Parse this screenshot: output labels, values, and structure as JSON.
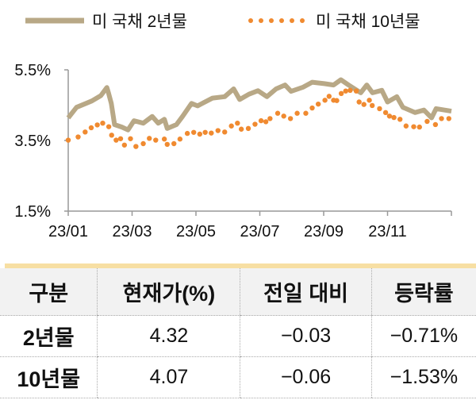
{
  "colors": {
    "y2": "#b8a886",
    "y10": "#f08a30"
  },
  "chart_data": {
    "type": "line",
    "title": "",
    "xlabel": "",
    "ylabel": "",
    "x_unit": "months since 2023-01-01",
    "xlim": [
      0,
      12
    ],
    "ylim": [
      1.5,
      5.5
    ],
    "yticks": [
      "5.5%",
      "3.5%",
      "1.5%"
    ],
    "ytick_values": [
      5.5,
      3.5,
      1.5
    ],
    "xticks": [
      "23/01",
      "23/03",
      "23/05",
      "23/07",
      "23/09",
      "23/11"
    ],
    "xtick_values": [
      0,
      2,
      4,
      6,
      8,
      10
    ],
    "legend_position": "top",
    "series": [
      {
        "name": "미 국채 2년물",
        "style": "line",
        "x": [
          0,
          0.26,
          0.74,
          1.02,
          1.21,
          1.26,
          1.35,
          1.45,
          1.68,
          1.87,
          2.06,
          2.35,
          2.63,
          2.82,
          3.01,
          3.1,
          3.39,
          3.58,
          3.86,
          4.05,
          4.52,
          4.9,
          5.18,
          5.37,
          5.66,
          5.94,
          6.22,
          6.51,
          6.79,
          6.98,
          7.36,
          7.64,
          8.02,
          8.31,
          8.54,
          8.78,
          9.16,
          9.35,
          9.53,
          9.82,
          10.0,
          10.29,
          10.48,
          10.86,
          11.14,
          11.38,
          11.52,
          12
        ],
        "y": [
          4.14,
          4.44,
          4.62,
          4.77,
          5.0,
          4.85,
          4.55,
          3.95,
          3.88,
          3.8,
          4.06,
          3.99,
          4.18,
          3.99,
          4.1,
          3.84,
          3.95,
          4.18,
          4.55,
          4.48,
          4.7,
          4.74,
          4.96,
          4.66,
          4.81,
          4.91,
          4.74,
          4.96,
          5.07,
          4.89,
          5.01,
          5.15,
          5.11,
          5.07,
          5.22,
          5.07,
          4.85,
          5.07,
          4.85,
          4.92,
          4.59,
          4.74,
          4.44,
          4.29,
          4.36,
          4.14,
          4.4,
          4.33
        ]
      },
      {
        "name": "미 국채 10년물",
        "style": "dots",
        "x": [
          0,
          0.31,
          0.53,
          0.72,
          0.91,
          1.08,
          1.27,
          1.36,
          1.5,
          1.64,
          1.76,
          1.95,
          2.12,
          2.35,
          2.54,
          2.74,
          3.01,
          3.1,
          3.31,
          3.5,
          3.73,
          3.93,
          4.12,
          4.29,
          4.48,
          4.69,
          4.9,
          5.11,
          5.3,
          5.42,
          5.64,
          5.85,
          6.04,
          6.19,
          6.32,
          6.56,
          6.75,
          6.96,
          7.17,
          7.44,
          7.64,
          7.83,
          8.04,
          8.17,
          8.31,
          8.41,
          8.55,
          8.69,
          8.83,
          9.02,
          9.11,
          9.26,
          9.43,
          9.52,
          9.75,
          9.94,
          10.06,
          10.2,
          10.39,
          10.58,
          10.82,
          11.0,
          11.24,
          11.5,
          11.69,
          11.92
        ],
        "y": [
          3.51,
          3.6,
          3.74,
          3.86,
          3.94,
          3.99,
          3.89,
          3.65,
          3.51,
          3.55,
          3.37,
          3.55,
          3.33,
          3.41,
          3.56,
          3.51,
          3.54,
          3.39,
          3.41,
          3.54,
          3.7,
          3.73,
          3.68,
          3.73,
          3.71,
          3.78,
          3.74,
          3.91,
          3.99,
          3.82,
          3.84,
          3.96,
          4.06,
          4.03,
          4.12,
          4.27,
          4.19,
          4.12,
          4.27,
          4.27,
          4.42,
          4.53,
          4.64,
          4.75,
          4.64,
          4.63,
          4.83,
          4.9,
          4.92,
          4.9,
          4.59,
          4.52,
          4.64,
          4.49,
          4.4,
          4.29,
          4.19,
          4.15,
          4.1,
          3.91,
          3.89,
          3.88,
          4.04,
          3.95,
          4.12,
          4.12
        ]
      }
    ]
  },
  "table": {
    "headers": [
      "구분",
      "현재가(%)",
      "전일 대비",
      "등락률"
    ],
    "rows": [
      [
        "2년물",
        "4.32",
        "−0.03",
        "−0.71%"
      ],
      [
        "10년물",
        "4.07",
        "−0.06",
        "−1.53%"
      ]
    ]
  }
}
